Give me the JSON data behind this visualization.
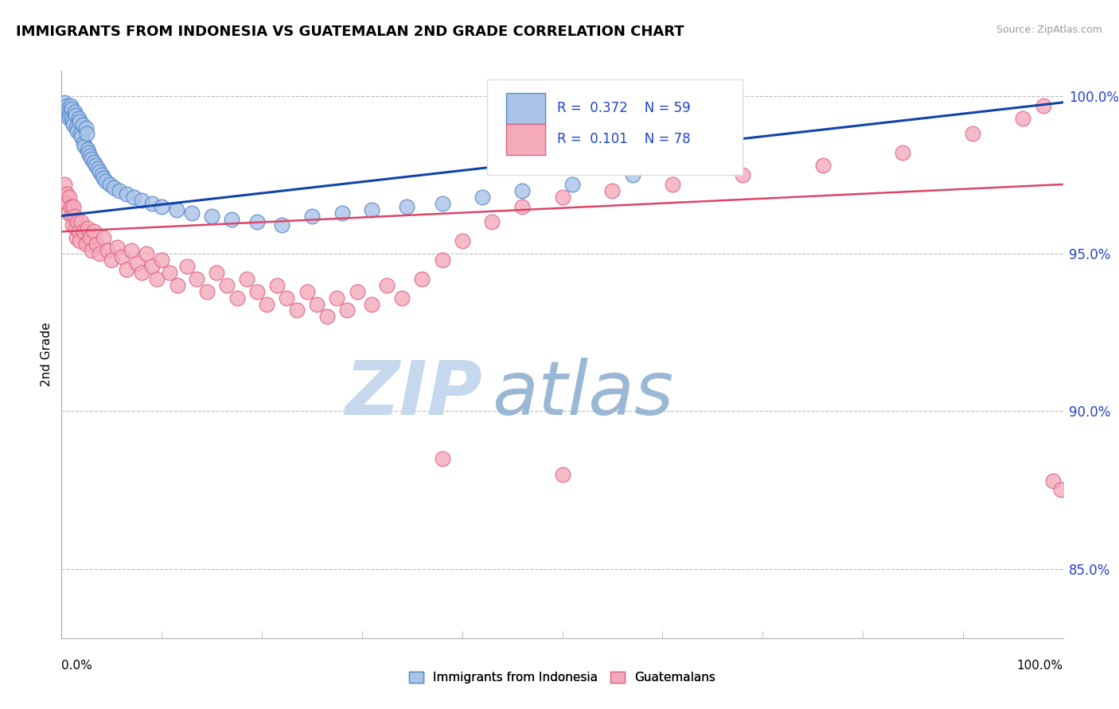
{
  "title": "IMMIGRANTS FROM INDONESIA VS GUATEMALAN 2ND GRADE CORRELATION CHART",
  "source": "Source: ZipAtlas.com",
  "ylabel": "2nd Grade",
  "xlim": [
    0.0,
    1.0
  ],
  "ylim": [
    0.828,
    1.008
  ],
  "blue_R": 0.372,
  "blue_N": 59,
  "pink_R": 0.101,
  "pink_N": 78,
  "blue_color": "#aac4e8",
  "blue_edge": "#5588cc",
  "pink_color": "#f4aabb",
  "pink_edge": "#dd6688",
  "blue_line_color": "#1144aa",
  "pink_line_color": "#dd4466",
  "legend_text_color": "#2244cc",
  "watermark_zip_color": "#b8cfe8",
  "watermark_atlas_color": "#9ab8d8",
  "grid_color": "#bbbbbb",
  "blue_x": [
    0.003,
    0.005,
    0.006,
    0.007,
    0.008,
    0.008,
    0.009,
    0.01,
    0.01,
    0.011,
    0.012,
    0.013,
    0.014,
    0.015,
    0.016,
    0.017,
    0.018,
    0.019,
    0.02,
    0.021,
    0.022,
    0.023,
    0.024,
    0.025,
    0.026,
    0.027,
    0.028,
    0.03,
    0.032,
    0.034,
    0.036,
    0.038,
    0.04,
    0.042,
    0.044,
    0.048,
    0.052,
    0.058,
    0.065,
    0.072,
    0.08,
    0.09,
    0.1,
    0.115,
    0.13,
    0.15,
    0.17,
    0.195,
    0.22,
    0.25,
    0.28,
    0.31,
    0.345,
    0.38,
    0.42,
    0.46,
    0.51,
    0.57,
    0.65
  ],
  "blue_y": [
    0.998,
    0.997,
    0.996,
    0.995,
    0.994,
    0.993,
    0.997,
    0.996,
    0.993,
    0.992,
    0.991,
    0.995,
    0.994,
    0.99,
    0.989,
    0.993,
    0.992,
    0.988,
    0.987,
    0.991,
    0.985,
    0.984,
    0.99,
    0.988,
    0.983,
    0.982,
    0.981,
    0.98,
    0.979,
    0.978,
    0.977,
    0.976,
    0.975,
    0.974,
    0.973,
    0.972,
    0.971,
    0.97,
    0.969,
    0.968,
    0.967,
    0.966,
    0.965,
    0.964,
    0.963,
    0.962,
    0.961,
    0.96,
    0.959,
    0.962,
    0.963,
    0.964,
    0.965,
    0.966,
    0.968,
    0.97,
    0.972,
    0.975,
    0.978
  ],
  "pink_x": [
    0.003,
    0.005,
    0.006,
    0.007,
    0.008,
    0.009,
    0.01,
    0.011,
    0.012,
    0.013,
    0.014,
    0.015,
    0.016,
    0.017,
    0.018,
    0.02,
    0.022,
    0.024,
    0.026,
    0.028,
    0.03,
    0.032,
    0.035,
    0.038,
    0.042,
    0.046,
    0.05,
    0.055,
    0.06,
    0.065,
    0.07,
    0.075,
    0.08,
    0.085,
    0.09,
    0.095,
    0.1,
    0.108,
    0.116,
    0.125,
    0.135,
    0.145,
    0.155,
    0.165,
    0.175,
    0.185,
    0.195,
    0.205,
    0.215,
    0.225,
    0.235,
    0.245,
    0.255,
    0.265,
    0.275,
    0.285,
    0.295,
    0.31,
    0.325,
    0.34,
    0.36,
    0.38,
    0.4,
    0.43,
    0.46,
    0.5,
    0.55,
    0.61,
    0.68,
    0.76,
    0.84,
    0.91,
    0.96,
    0.98,
    0.99,
    0.998,
    0.38,
    0.5
  ],
  "pink_y": [
    0.972,
    0.969,
    0.966,
    0.963,
    0.968,
    0.965,
    0.962,
    0.959,
    0.965,
    0.962,
    0.958,
    0.955,
    0.96,
    0.957,
    0.954,
    0.96,
    0.957,
    0.953,
    0.958,
    0.955,
    0.951,
    0.957,
    0.953,
    0.95,
    0.955,
    0.951,
    0.948,
    0.952,
    0.949,
    0.945,
    0.951,
    0.947,
    0.944,
    0.95,
    0.946,
    0.942,
    0.948,
    0.944,
    0.94,
    0.946,
    0.942,
    0.938,
    0.944,
    0.94,
    0.936,
    0.942,
    0.938,
    0.934,
    0.94,
    0.936,
    0.932,
    0.938,
    0.934,
    0.93,
    0.936,
    0.932,
    0.938,
    0.934,
    0.94,
    0.936,
    0.942,
    0.948,
    0.954,
    0.96,
    0.965,
    0.968,
    0.97,
    0.972,
    0.975,
    0.978,
    0.982,
    0.988,
    0.993,
    0.997,
    0.878,
    0.875,
    0.885,
    0.88
  ],
  "blue_trend_x": [
    0.0,
    1.0
  ],
  "blue_trend_y": [
    0.962,
    0.998
  ],
  "pink_trend_x": [
    0.0,
    1.0
  ],
  "pink_trend_y": [
    0.957,
    0.972
  ]
}
